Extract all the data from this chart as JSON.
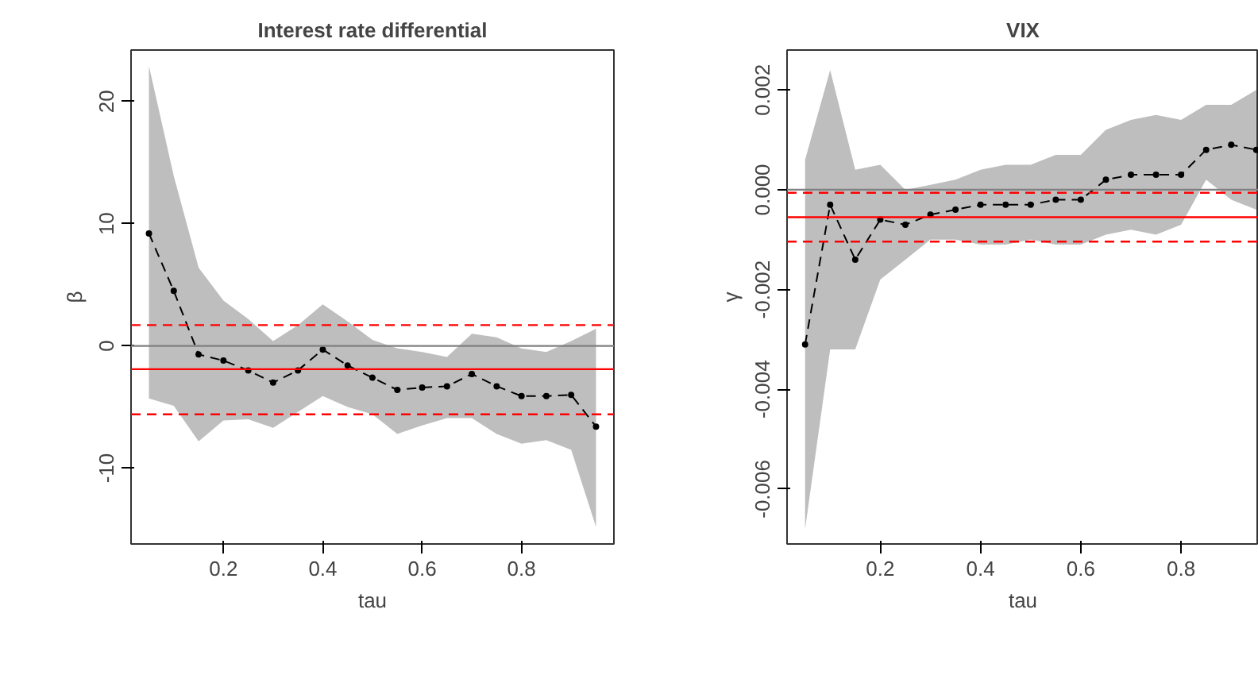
{
  "chart_data": [
    {
      "type": "line",
      "title": "Interest rate differential",
      "xlabel": "tau",
      "ylabel": "β",
      "x": [
        0.05,
        0.1,
        0.15,
        0.2,
        0.25,
        0.3,
        0.35,
        0.4,
        0.45,
        0.5,
        0.55,
        0.6,
        0.65,
        0.7,
        0.75,
        0.8,
        0.85,
        0.9,
        0.95
      ],
      "series": [
        {
          "color": "#000000",
          "values": [
            9.2,
            4.5,
            -0.7,
            -1.2,
            -2.0,
            -3.0,
            -2.0,
            -0.3,
            -1.6,
            -2.6,
            -3.6,
            -3.4,
            -3.3,
            -2.3,
            -3.3,
            -4.1,
            -4.1,
            -4.0,
            -6.6
          ],
          "upper": [
            22.9,
            13.9,
            6.4,
            3.7,
            2.2,
            0.4,
            1.7,
            3.4,
            2.0,
            0.5,
            -0.2,
            -0.5,
            -0.9,
            1.0,
            0.7,
            -0.2,
            -0.5,
            0.4,
            1.4
          ],
          "lower": [
            -4.3,
            -4.9,
            -7.8,
            -6.1,
            -6.0,
            -6.7,
            -5.4,
            -4.1,
            -5.0,
            -5.6,
            -7.2,
            -6.5,
            -5.9,
            -5.9,
            -7.2,
            -8.0,
            -7.7,
            -8.5,
            -14.8
          ]
        }
      ],
      "marker": "circle",
      "line_style": "dashed",
      "grid": false,
      "xlim": [
        0.014,
        0.986
      ],
      "ylim": [
        -16.2,
        24.2
      ],
      "xticks": [
        0.2,
        0.4,
        0.6,
        0.8
      ],
      "yticks": [
        -10,
        0,
        10,
        20
      ],
      "ref_lines": [
        {
          "axis": "y",
          "value": 0,
          "color": "#808080",
          "line_style": "solid"
        },
        {
          "axis": "y",
          "value": -1.9,
          "color": "#ff0000",
          "line_style": "solid"
        },
        {
          "axis": "y",
          "value": 1.7,
          "color": "#ff0000",
          "line_style": "dashed"
        },
        {
          "axis": "y",
          "value": -5.6,
          "color": "#ff0000",
          "line_style": "dashed"
        }
      ]
    },
    {
      "type": "line",
      "title": "VIX",
      "xlabel": "tau",
      "ylabel": "γ",
      "x": [
        0.05,
        0.1,
        0.15,
        0.2,
        0.25,
        0.3,
        0.35,
        0.4,
        0.45,
        0.5,
        0.55,
        0.6,
        0.65,
        0.7,
        0.75,
        0.8,
        0.85,
        0.9,
        0.95
      ],
      "series": [
        {
          "color": "#000000",
          "values": [
            -0.0031,
            -0.0003,
            -0.0014,
            -0.0006,
            -0.0007,
            -0.0005,
            -0.0004,
            -0.0003,
            -0.0003,
            -0.0003,
            -0.0002,
            -0.0002,
            0.0002,
            0.0003,
            0.0003,
            0.0003,
            0.0008,
            0.0009,
            0.0008
          ],
          "upper": [
            0.0006,
            0.0024,
            0.0004,
            0.0005,
            0.0,
            0.0001,
            0.0002,
            0.0004,
            0.0005,
            0.0005,
            0.0007,
            0.0007,
            0.0012,
            0.0014,
            0.0015,
            0.0014,
            0.0017,
            0.0017,
            0.002
          ],
          "lower": [
            -0.0068,
            -0.0032,
            -0.0032,
            -0.0018,
            -0.0014,
            -0.001,
            -0.001,
            -0.0011,
            -0.0011,
            -0.001,
            -0.0011,
            -0.0011,
            -0.0009,
            -0.0008,
            -0.0009,
            -0.0007,
            0.0002,
            -0.0002,
            -0.0004
          ]
        }
      ],
      "marker": "circle",
      "line_style": "dashed",
      "grid": false,
      "xlim": [
        0.014,
        0.955
      ],
      "ylim": [
        -0.0071,
        0.0028
      ],
      "xticks": [
        0.2,
        0.4,
        0.6,
        0.8
      ],
      "yticks": [
        {
          "value": -0.006,
          "label": "-0.006"
        },
        {
          "value": -0.004,
          "label": "-0.004"
        },
        {
          "value": -0.002,
          "label": "-0.002"
        },
        {
          "value": 0.0,
          "label": "0.000"
        },
        {
          "value": 0.002,
          "label": "0.002"
        }
      ],
      "ref_lines": [
        {
          "axis": "y",
          "value": 0,
          "color": "#808080",
          "line_style": "solid"
        },
        {
          "axis": "y",
          "value": -0.00055,
          "color": "#ff0000",
          "line_style": "solid"
        },
        {
          "axis": "y",
          "value": -6e-05,
          "color": "#ff0000",
          "line_style": "dashed"
        },
        {
          "axis": "y",
          "value": -0.00104,
          "color": "#ff0000",
          "line_style": "dashed"
        }
      ]
    }
  ]
}
